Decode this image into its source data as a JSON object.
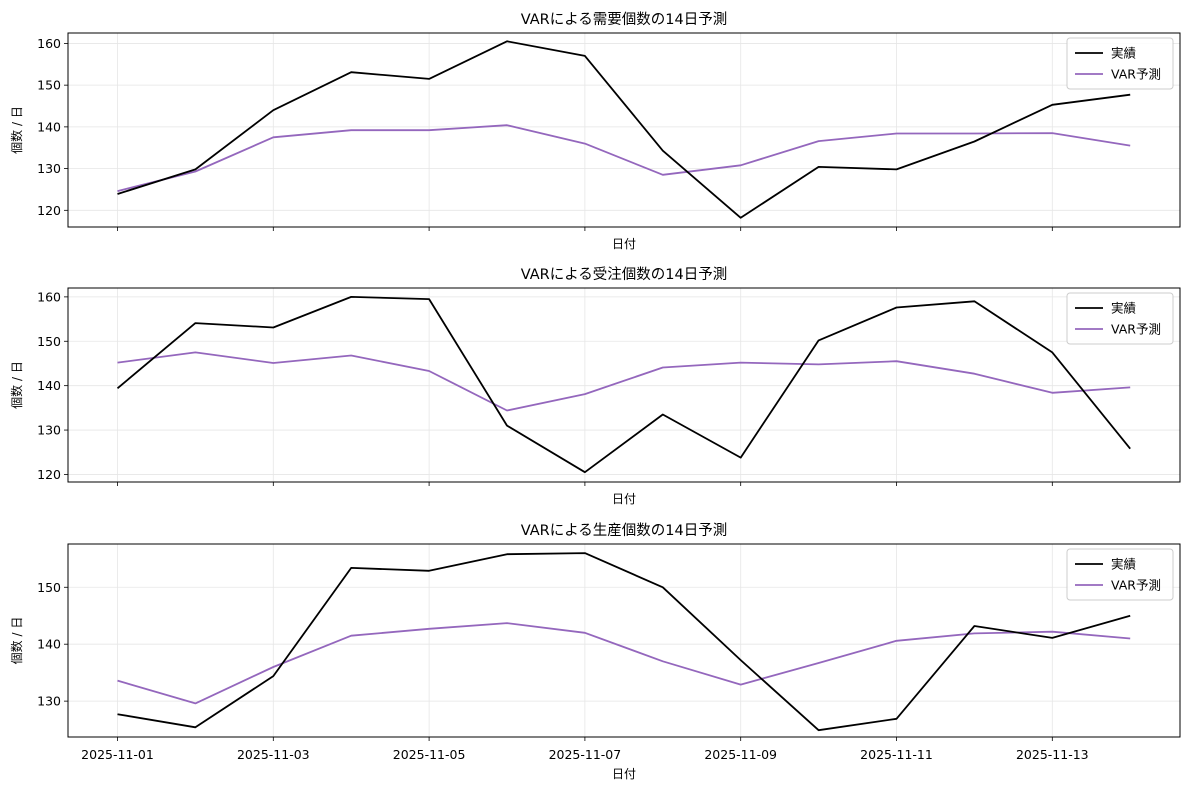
{
  "chart_data": [
    {
      "type": "line",
      "title": "VARによる需要個数の14日予測",
      "xlabel": "日付",
      "ylabel": "個数 / 日",
      "x": [
        "2025-11-01",
        "2025-11-02",
        "2025-11-03",
        "2025-11-04",
        "2025-11-05",
        "2025-11-06",
        "2025-11-07",
        "2025-11-08",
        "2025-11-09",
        "2025-11-10",
        "2025-11-11",
        "2025-11-12",
        "2025-11-13",
        "2025-11-14"
      ],
      "ylim": [
        116,
        162.5
      ],
      "yticks": [
        120,
        130,
        140,
        150,
        160
      ],
      "xtick_labels_visible": false,
      "grid": true,
      "legend_position": "top-right",
      "series": [
        {
          "name": "実績",
          "color": "#000000",
          "values": [
            123.9,
            129.8,
            144.0,
            153.1,
            151.5,
            160.5,
            157.0,
            134.3,
            118.2,
            130.4,
            129.8,
            136.5,
            145.3,
            147.7
          ]
        },
        {
          "name": "VAR予測",
          "color": "#9467bd",
          "values": [
            124.6,
            129.3,
            137.5,
            139.2,
            139.2,
            140.4,
            136.0,
            128.5,
            130.8,
            136.6,
            138.4,
            138.4,
            138.5,
            135.5
          ]
        }
      ]
    },
    {
      "type": "line",
      "title": "VARによる受注個数の14日予測",
      "xlabel": "日付",
      "ylabel": "個数 / 日",
      "x": [
        "2025-11-01",
        "2025-11-02",
        "2025-11-03",
        "2025-11-04",
        "2025-11-05",
        "2025-11-06",
        "2025-11-07",
        "2025-11-08",
        "2025-11-09",
        "2025-11-10",
        "2025-11-11",
        "2025-11-12",
        "2025-11-13",
        "2025-11-14"
      ],
      "ylim": [
        118.3,
        162
      ],
      "yticks": [
        120,
        130,
        140,
        150,
        160
      ],
      "xtick_labels_visible": false,
      "grid": true,
      "legend_position": "top-right",
      "series": [
        {
          "name": "実績",
          "color": "#000000",
          "values": [
            139.4,
            154.1,
            153.1,
            160.0,
            159.5,
            131.0,
            120.5,
            133.5,
            123.8,
            150.2,
            157.6,
            159.0,
            147.5,
            125.8
          ]
        },
        {
          "name": "VAR予測",
          "color": "#9467bd",
          "values": [
            145.2,
            147.5,
            145.1,
            146.8,
            143.3,
            134.4,
            138.1,
            144.1,
            145.2,
            144.8,
            145.5,
            142.7,
            138.4,
            139.6
          ]
        }
      ]
    },
    {
      "type": "line",
      "title": "VARによる生産個数の14日予測",
      "xlabel": "日付",
      "ylabel": "個数 / 日",
      "x": [
        "2025-11-01",
        "2025-11-02",
        "2025-11-03",
        "2025-11-04",
        "2025-11-05",
        "2025-11-06",
        "2025-11-07",
        "2025-11-08",
        "2025-11-09",
        "2025-11-10",
        "2025-11-11",
        "2025-11-12",
        "2025-11-13",
        "2025-11-14"
      ],
      "ylim": [
        123.7,
        157.6
      ],
      "yticks": [
        130,
        140,
        150
      ],
      "xtick_labels": [
        "2025-11-01",
        "",
        "2025-11-03",
        "",
        "2025-11-05",
        "",
        "2025-11-07",
        "",
        "2025-11-09",
        "",
        "2025-11-11",
        "",
        "2025-11-13",
        ""
      ],
      "xtick_labels_visible": true,
      "grid": true,
      "legend_position": "top-right",
      "series": [
        {
          "name": "実績",
          "color": "#000000",
          "values": [
            127.7,
            125.4,
            134.4,
            153.4,
            152.9,
            155.8,
            156.0,
            150.0,
            137.2,
            124.9,
            126.9,
            143.2,
            141.1,
            145.0
          ]
        },
        {
          "name": "VAR予測",
          "color": "#9467bd",
          "values": [
            133.6,
            129.6,
            136.0,
            141.5,
            142.7,
            143.7,
            142.0,
            137.0,
            132.9,
            136.7,
            140.6,
            141.9,
            142.2,
            141.0
          ]
        }
      ]
    }
  ]
}
